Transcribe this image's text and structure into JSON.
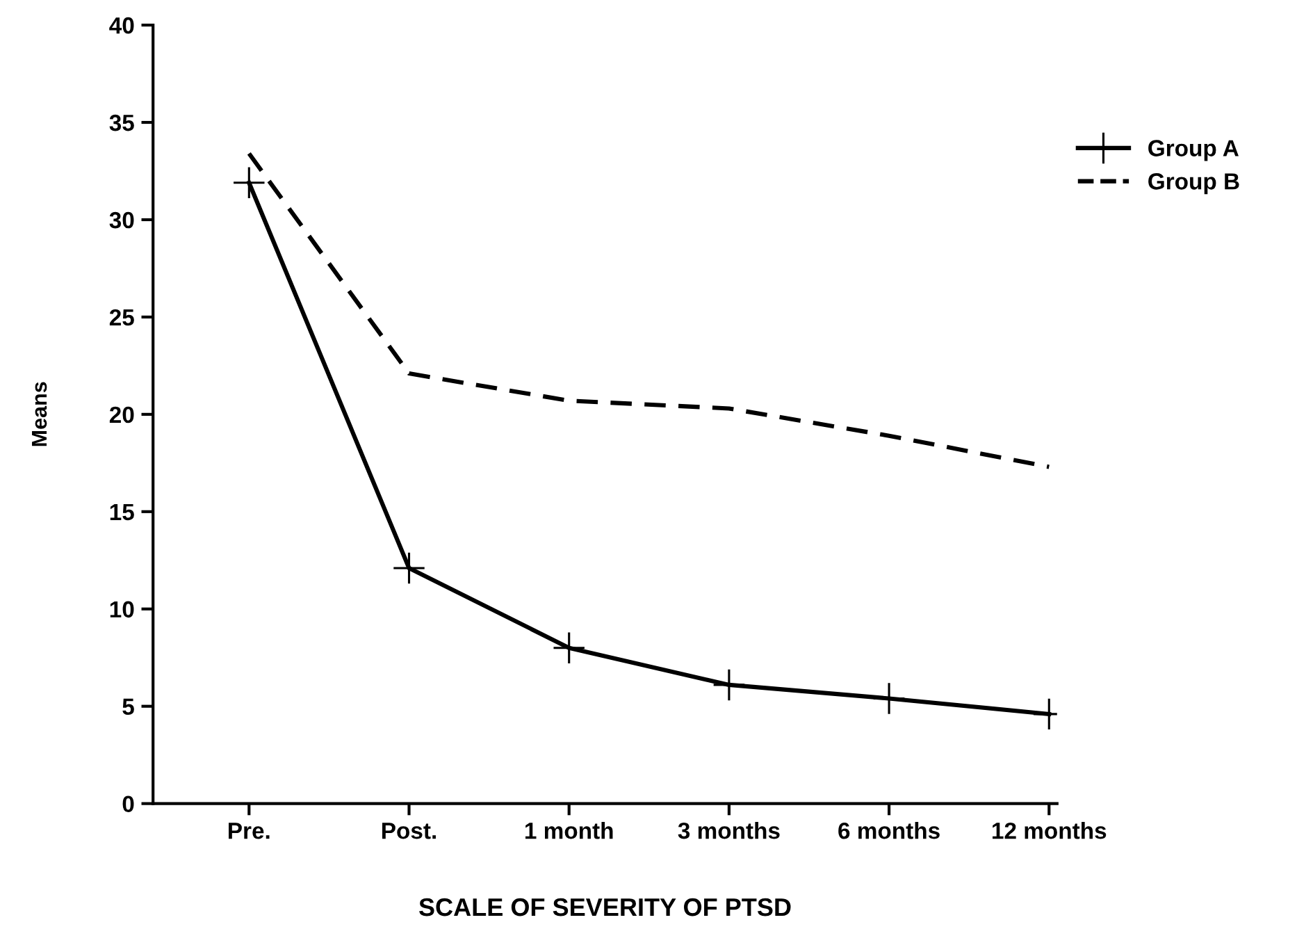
{
  "chart_data": {
    "type": "line",
    "xlabel": "SCALE OF SEVERITY OF PTSD",
    "ylabel": "Means",
    "categories": [
      "Pre.",
      "Post.",
      "1 month",
      "3 months",
      "6 months",
      "12 months"
    ],
    "series": [
      {
        "name": "Group A",
        "color": "#000000",
        "values": [
          31.9,
          12.1,
          8.0,
          6.1,
          5.4,
          4.6
        ],
        "marker": "cross",
        "line_style": "solid"
      },
      {
        "name": "Group B",
        "color": "#000000",
        "values": [
          33.4,
          22.1,
          20.7,
          20.3,
          18.9,
          17.3
        ],
        "marker": "none",
        "line_style": "dashed"
      }
    ],
    "ylim": [
      0,
      40
    ],
    "yticks": [
      0,
      5,
      10,
      15,
      20,
      25,
      30,
      35,
      40
    ],
    "grid": false,
    "legend": "top right"
  }
}
